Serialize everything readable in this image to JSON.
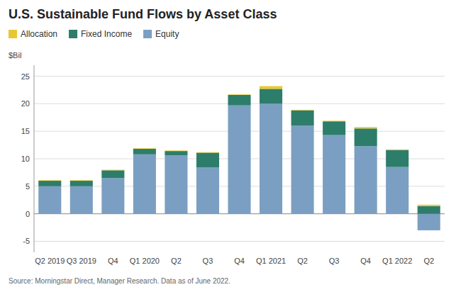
{
  "chart_data": {
    "type": "bar",
    "title": "U.S. Sustainable Fund Flows by Asset Class",
    "ylabel": "$Bil",
    "source": "Source: Morningstar Direct, Manager Research. Data as of June 2022.",
    "categories": [
      "Q2 2019",
      "Q3 2019",
      "Q4",
      "Q1 2020",
      "Q2",
      "Q3",
      "Q4",
      "Q1 2021",
      "Q2",
      "Q3",
      "Q4",
      "Q1 2022",
      "Q2"
    ],
    "series": [
      {
        "name": "Equity",
        "color": "#7b9fc2",
        "values": [
          5.0,
          5.0,
          6.5,
          10.8,
          10.6,
          8.4,
          19.7,
          20.0,
          16.0,
          14.3,
          12.3,
          8.5,
          -3.0
        ]
      },
      {
        "name": "Fixed Income",
        "color": "#2d7d6b",
        "values": [
          1.0,
          1.0,
          1.4,
          1.0,
          0.8,
          2.7,
          1.9,
          2.7,
          2.8,
          2.5,
          3.2,
          3.1,
          1.4
        ]
      },
      {
        "name": "Allocation",
        "color": "#e8c832",
        "values": [
          0.1,
          0.1,
          0.1,
          0.1,
          0.1,
          0.1,
          0.1,
          0.5,
          0.1,
          0.1,
          0.25,
          0.1,
          0.25
        ]
      }
    ],
    "stacked": true,
    "ylim": [
      -7,
      27
    ],
    "yticks": [
      -5,
      0,
      5,
      10,
      15,
      20,
      25
    ],
    "grid": true,
    "legend": "top-left"
  }
}
